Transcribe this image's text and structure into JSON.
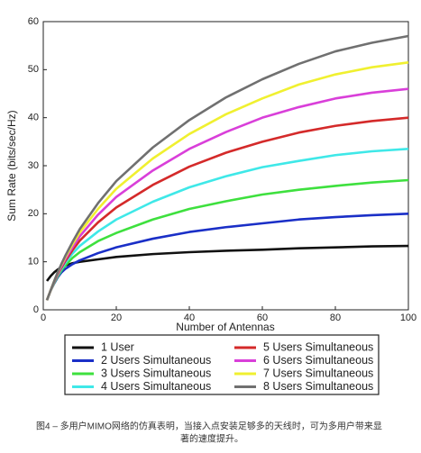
{
  "chart_data": {
    "type": "line",
    "xlabel": "Number of Antennas",
    "ylabel": "Sum Rate (bits/sec/Hz)",
    "x": [
      1,
      2,
      3,
      4,
      5,
      6,
      8,
      10,
      15,
      20,
      30,
      40,
      50,
      60,
      70,
      80,
      90,
      100
    ],
    "series": [
      {
        "name": "1 User",
        "color": "#111111",
        "values": [
          6,
          7,
          7.8,
          8.4,
          8.9,
          9.2,
          9.7,
          10,
          10.5,
          11,
          11.6,
          12,
          12.3,
          12.5,
          12.8,
          13,
          13.2,
          13.3
        ]
      },
      {
        "name": "2 Users Simultaneous",
        "color": "#1a2fc7",
        "values": [
          2,
          4,
          5.5,
          6.8,
          7.8,
          8.5,
          9.5,
          10.3,
          11.8,
          13,
          14.8,
          16.2,
          17.2,
          18,
          18.8,
          19.3,
          19.7,
          20
        ]
      },
      {
        "name": "3 Users Simultaneous",
        "color": "#3ee03e",
        "values": [
          2,
          4,
          5.6,
          7,
          8.2,
          9.2,
          10.8,
          12,
          14.3,
          16,
          18.8,
          21,
          22.6,
          24,
          25,
          25.8,
          26.5,
          27
        ]
      },
      {
        "name": "4 Users Simultaneous",
        "color": "#3fe8e8",
        "values": [
          2,
          4,
          5.7,
          7.2,
          8.5,
          9.7,
          11.7,
          13.3,
          16.3,
          18.8,
          22.5,
          25.5,
          27.8,
          29.7,
          31,
          32.2,
          33,
          33.5
        ]
      },
      {
        "name": "5 Users Simultaneous",
        "color": "#d42a2a",
        "values": [
          2,
          4,
          5.8,
          7.4,
          8.8,
          10.1,
          12.4,
          14.4,
          18.2,
          21.3,
          26,
          29.8,
          32.7,
          35,
          36.9,
          38.3,
          39.3,
          40
        ]
      },
      {
        "name": "6 Users Simultaneous",
        "color": "#d93fd9",
        "values": [
          2,
          4,
          5.9,
          7.6,
          9.1,
          10.5,
          13,
          15.3,
          19.8,
          23.5,
          29,
          33.5,
          37,
          40,
          42.2,
          44,
          45.2,
          46
        ]
      },
      {
        "name": "7 Users Simultaneous",
        "color": "#f0f030",
        "values": [
          2,
          4,
          6,
          7.8,
          9.4,
          10.9,
          13.6,
          16.1,
          21,
          25.2,
          31.5,
          36.6,
          40.7,
          44,
          46.9,
          49,
          50.5,
          51.5
        ]
      },
      {
        "name": "8 Users Simultaneous",
        "color": "#707070",
        "values": [
          2,
          4,
          6,
          7.9,
          9.6,
          11.2,
          14.1,
          16.8,
          22.2,
          26.8,
          33.8,
          39.5,
          44.2,
          48,
          51.2,
          53.8,
          55.6,
          57
        ]
      }
    ],
    "xlim": [
      0,
      100
    ],
    "xticks": [
      0,
      20,
      40,
      60,
      80,
      100
    ],
    "ylim": [
      0,
      60
    ],
    "yticks": [
      0,
      10,
      20,
      30,
      40,
      50,
      60
    ],
    "caption": [
      "图4 – 多用户MIMO网络的仿真表明，当接入点安装足够多的天线时，可为多用户带来显",
      "著的速度提升。"
    ]
  }
}
